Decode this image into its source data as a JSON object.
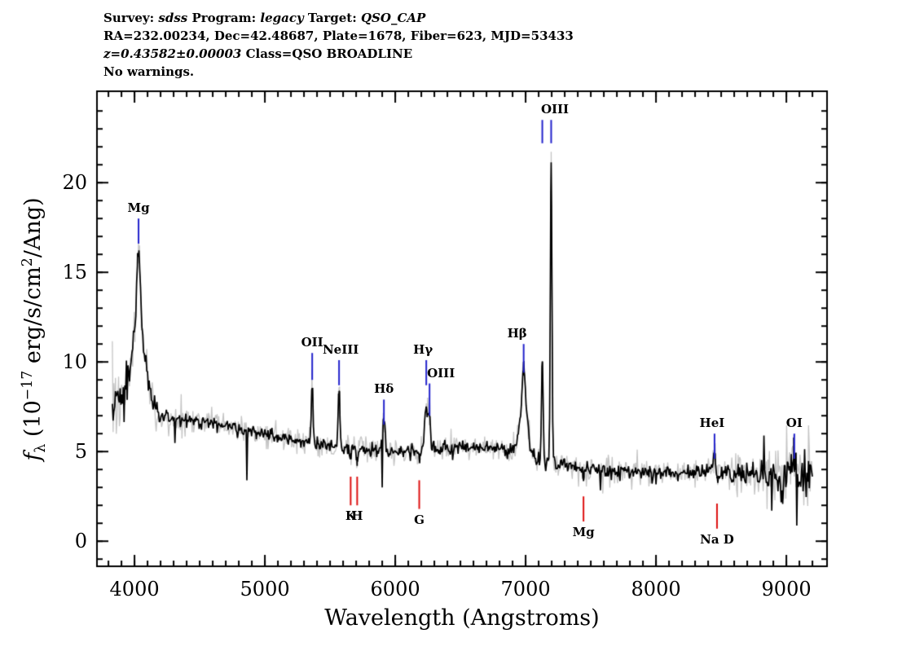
{
  "header": {
    "lines": [
      {
        "segments": [
          {
            "t": "Survey: "
          },
          {
            "t": "sdss",
            "i": true
          },
          {
            "t": " Program: "
          },
          {
            "t": "legacy",
            "i": true
          },
          {
            "t": " Target: "
          },
          {
            "t": "QSO_CAP",
            "i": true
          }
        ]
      },
      {
        "segments": [
          {
            "t": "RA=232.00234, Dec=42.48687, Plate=1678, Fiber=623, MJD=53433"
          }
        ]
      },
      {
        "segments": [
          {
            "t": "z=0.43582±0.00003",
            "i": true
          },
          {
            "t": " Class=QSO BROADLINE"
          }
        ]
      },
      {
        "segments": [
          {
            "t": "No warnings."
          }
        ]
      }
    ]
  },
  "y_title": {
    "f": "f",
    "sub": "λ",
    "pre": " (10",
    "exp": "−17",
    "mid": " erg/s/cm",
    "exp2": "2",
    "post": "/Ang)"
  },
  "colors": {
    "background": "#ffffff",
    "frame": "#000000",
    "spectrum": "#000000",
    "error_band": "#c4c4c4",
    "emission_marker": "#2222cc",
    "absorption_marker": "#dd1111",
    "text": "#000000"
  },
  "chart_data": {
    "type": "line",
    "description": "SDSS optical spectrum: black flux curve over gray uncertainty band with labeled emission (blue ticks) and absorption (red ticks) lines",
    "xlabel": "Wavelength (Angstroms)",
    "ylabel": "f_lambda (10^-17 erg/s/cm^2/Ang)",
    "xlim": [
      3712,
      9312
    ],
    "ylim": [
      -1.4,
      25.1
    ],
    "x_ticks": [
      4000,
      5000,
      6000,
      7000,
      8000,
      9000
    ],
    "y_ticks": [
      0,
      5,
      10,
      15,
      20
    ],
    "x_minor_step": 100,
    "y_minor_step": 1,
    "data_start": 3830,
    "data_end": 9205,
    "step": 6,
    "continuum": [
      [
        3830,
        7.7
      ],
      [
        4000,
        7.6
      ],
      [
        4200,
        6.9
      ],
      [
        4500,
        6.7
      ],
      [
        4800,
        6.3
      ],
      [
        5100,
        5.8
      ],
      [
        5400,
        5.4
      ],
      [
        5700,
        5.1
      ],
      [
        6000,
        5.0
      ],
      [
        6300,
        5.1
      ],
      [
        6600,
        5.3
      ],
      [
        6900,
        5.1
      ],
      [
        7050,
        4.7
      ],
      [
        7250,
        4.3
      ],
      [
        7500,
        4.0
      ],
      [
        7800,
        3.9
      ],
      [
        8100,
        3.8
      ],
      [
        8400,
        3.9
      ],
      [
        8700,
        3.7
      ],
      [
        9000,
        3.6
      ],
      [
        9205,
        3.8
      ]
    ],
    "emission_features": [
      {
        "name": "MgII broad",
        "center": 4031,
        "amp": 4.3,
        "sigma": 55
      },
      {
        "name": "MgII core",
        "center": 4031,
        "amp": 4.3,
        "sigma": 15
      },
      {
        "name": "[OII]",
        "center": 5363,
        "amp": 3.4,
        "sigma": 7
      },
      {
        "name": "[NeIII]",
        "center": 5569,
        "amp": 3.2,
        "sigma": 7
      },
      {
        "name": "Hdelta",
        "center": 5913,
        "amp": 1.7,
        "sigma": 10
      },
      {
        "name": "Hgamma",
        "center": 6238,
        "amp": 2.3,
        "sigma": 14
      },
      {
        "name": "[OIII]4363",
        "center": 6263,
        "amp": 1.6,
        "sigma": 7
      },
      {
        "name": "Hbeta broad",
        "center": 6985,
        "amp": 3.0,
        "sigma": 30
      },
      {
        "name": "Hbeta core",
        "center": 6985,
        "amp": 1.9,
        "sigma": 9
      },
      {
        "name": "[OIII]4959",
        "center": 7128,
        "amp": 5.6,
        "sigma": 6
      },
      {
        "name": "[OIII]5007",
        "center": 7196,
        "amp": 16.6,
        "sigma": 6
      },
      {
        "name": "HeI",
        "center": 8449,
        "amp": 1.0,
        "sigma": 10
      },
      {
        "name": "OI",
        "center": 9061,
        "amp": 1.2,
        "sigma": 9
      }
    ],
    "absorption_features": [
      {
        "name": "CaII K",
        "center": 5658,
        "amp": -0.5,
        "sigma": 6
      },
      {
        "name": "CaII H",
        "center": 5708,
        "amp": -0.5,
        "sigma": 6
      },
      {
        "name": "G band",
        "center": 6184,
        "amp": -0.35,
        "sigma": 8
      },
      {
        "name": "Mg",
        "center": 7444,
        "amp": -0.3,
        "sigma": 9
      },
      {
        "name": "Na D",
        "center": 8468,
        "amp": -0.4,
        "sigma": 7
      }
    ],
    "spikes": [
      {
        "lambda": 4862,
        "flux": 3.4
      },
      {
        "lambda": 5903,
        "flux": 3.0
      },
      {
        "lambda": 8831,
        "flux": 5.9
      },
      {
        "lambda": 8887,
        "flux": 1.7
      }
    ],
    "noise": {
      "base": 0.35,
      "blue_amp": 0.9,
      "blue_scale": 250,
      "red_start": 8200,
      "red_amp": 0.9,
      "telluric": [
        {
          "center": 7615,
          "amp": 0.3,
          "sigma": 70
        },
        {
          "center": 6870,
          "amp": 0.15,
          "sigma": 45
        }
      ],
      "gray_mult": 1.0,
      "black_mult": 0.5
    },
    "markers": {
      "emission": [
        {
          "label": "Mg",
          "lambdas": [
            4031
          ],
          "tick_flux": [
            16.6,
            18.0
          ],
          "dx": 0
        },
        {
          "label": "OII",
          "lambdas": [
            5363
          ],
          "tick_flux": [
            9.0,
            10.5
          ],
          "dx": 0
        },
        {
          "label": "NeIII",
          "lambdas": [
            5569
          ],
          "tick_flux": [
            8.7,
            10.1
          ],
          "dx": 2
        },
        {
          "label": "Hδ",
          "lambdas": [
            5913
          ],
          "tick_flux": [
            6.5,
            7.9
          ],
          "dx": 0
        },
        {
          "label": "Hγ",
          "lambdas": [
            6238
          ],
          "tick_flux": [
            8.7,
            10.1
          ],
          "dx": -4
        },
        {
          "label": "OIII",
          "lambdas": [
            6263
          ],
          "tick_flux": [
            7.0,
            8.8
          ],
          "dx": 14
        },
        {
          "label": "Hβ",
          "lambdas": [
            6985
          ],
          "tick_flux": [
            9.4,
            11.0
          ],
          "dx": -8
        },
        {
          "label": "OIII",
          "lambdas": [
            7128,
            7196
          ],
          "tick_flux": [
            22.2,
            23.5
          ],
          "dx": 10
        },
        {
          "label": "HeI",
          "lambdas": [
            8449
          ],
          "tick_flux": [
            4.6,
            6.0
          ],
          "dx": -3
        },
        {
          "label": "OI",
          "lambdas": [
            9061
          ],
          "tick_flux": [
            4.6,
            6.0
          ],
          "dx": 0
        }
      ],
      "absorption": [
        {
          "label": "K",
          "lambdas": [
            5658
          ],
          "tick_flux": [
            2.0,
            3.6
          ],
          "dx": 0
        },
        {
          "label": "H",
          "lambdas": [
            5708
          ],
          "tick_flux": [
            2.0,
            3.6
          ],
          "dx": 0
        },
        {
          "label": "G",
          "lambdas": [
            6184
          ],
          "tick_flux": [
            1.8,
            3.4
          ],
          "dx": 0
        },
        {
          "label": "Mg",
          "lambdas": [
            7444
          ],
          "tick_flux": [
            1.1,
            2.5
          ],
          "dx": 0
        },
        {
          "label": "Na D",
          "lambdas": [
            8468
          ],
          "tick_flux": [
            0.7,
            2.1
          ],
          "dx": 0
        }
      ]
    }
  }
}
